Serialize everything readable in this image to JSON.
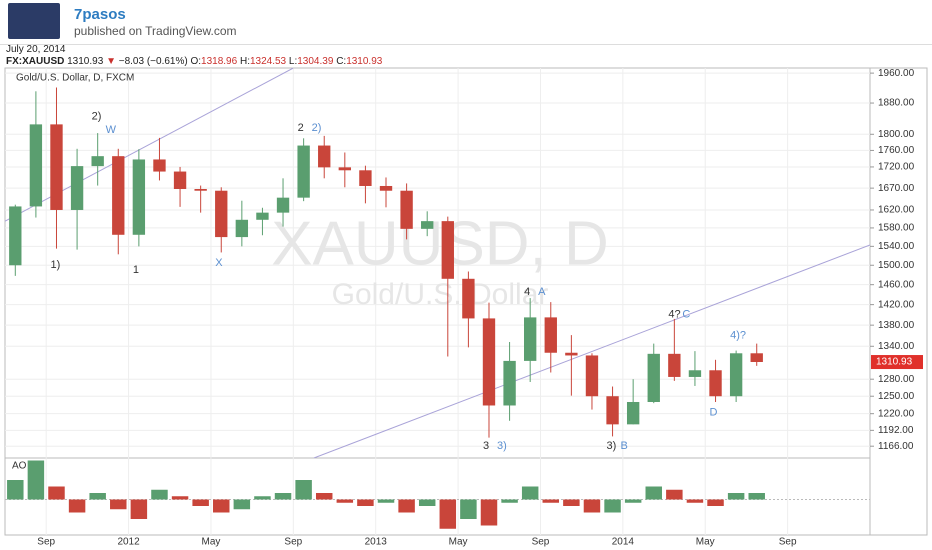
{
  "header": {
    "author": "7pasos",
    "published": "published on TradingView.com",
    "date": "July 20, 2014"
  },
  "quote": {
    "symbol": "FX:XAUUSD",
    "last": "1310.93",
    "arrow": "▼",
    "change": "−8.03 (−0.61%)",
    "fields": [
      {
        "label": "O:",
        "value": "1318.96"
      },
      {
        "label": "H:",
        "value": "1324.53"
      },
      {
        "label": "L:",
        "value": "1304.39"
      },
      {
        "label": "C:",
        "value": "1310.93"
      }
    ]
  },
  "chart_data": {
    "type": "candlestick",
    "title": "Gold/U.S. Dollar, D, FXCM",
    "watermark": "XAUUSD, D",
    "watermark_sub": "Gold/U.S. Dollar",
    "log_scale": true,
    "grid": true,
    "up_color": "#5a9e6f",
    "down_color": "#c9453a",
    "line_color": "#a9a3d8",
    "last_price": {
      "value": 1310.93,
      "label": "1310.93",
      "color": "#e0302a"
    },
    "x": [
      "2011-07",
      "2011-08",
      "2011-09",
      "2011-10",
      "2011-11",
      "2011-12",
      "2012-01",
      "2012-02",
      "2012-03",
      "2012-04",
      "2012-05",
      "2012-06",
      "2012-07",
      "2012-08",
      "2012-09",
      "2012-10",
      "2012-11",
      "2012-12",
      "2013-01",
      "2013-02",
      "2013-03",
      "2013-04",
      "2013-05",
      "2013-06",
      "2013-07",
      "2013-08",
      "2013-09",
      "2013-10",
      "2013-11",
      "2013-12",
      "2014-01",
      "2014-02",
      "2014-03",
      "2014-04",
      "2014-05",
      "2014-06",
      "2014-07"
    ],
    "open": [
      1500,
      1628,
      1825,
      1620,
      1722,
      1746,
      1565,
      1738,
      1709,
      1668,
      1664,
      1560,
      1598,
      1614,
      1648,
      1772,
      1719,
      1712,
      1675,
      1664,
      1578,
      1595,
      1472,
      1393,
      1234,
      1313,
      1395,
      1328,
      1323,
      1250,
      1202,
      1240,
      1326,
      1284,
      1296,
      1250,
      1327
    ],
    "high": [
      1632,
      1911,
      1921,
      1764,
      1803,
      1764,
      1763,
      1791,
      1720,
      1676,
      1672,
      1641,
      1625,
      1693,
      1790,
      1796,
      1755,
      1723,
      1695,
      1681,
      1617,
      1605,
      1487,
      1424,
      1348,
      1433,
      1425,
      1361,
      1327,
      1267,
      1280,
      1345,
      1392,
      1331,
      1315,
      1332,
      1345
    ],
    "low": [
      1478,
      1603,
      1535,
      1533,
      1676,
      1523,
      1540,
      1688,
      1627,
      1614,
      1527,
      1540,
      1564,
      1583,
      1640,
      1693,
      1672,
      1635,
      1626,
      1555,
      1562,
      1321,
      1338,
      1180,
      1208,
      1275,
      1292,
      1251,
      1227,
      1182,
      1202,
      1238,
      1277,
      1268,
      1240,
      1240,
      1304
    ],
    "close": [
      1628,
      1825,
      1620,
      1722,
      1746,
      1565,
      1738,
      1709,
      1668,
      1664,
      1560,
      1598,
      1614,
      1648,
      1772,
      1719,
      1712,
      1675,
      1664,
      1578,
      1595,
      1472,
      1393,
      1234,
      1313,
      1395,
      1328,
      1323,
      1250,
      1202,
      1240,
      1326,
      1284,
      1296,
      1250,
      1327,
      1311
    ],
    "xlim": [
      "2011-07",
      "2015-01"
    ],
    "xticks": [
      {
        "value": "2011-09",
        "label": "Sep"
      },
      {
        "value": "2012-01",
        "label": "2012"
      },
      {
        "value": "2012-05",
        "label": "May"
      },
      {
        "value": "2012-09",
        "label": "Sep"
      },
      {
        "value": "2013-01",
        "label": "2013"
      },
      {
        "value": "2013-05",
        "label": "May"
      },
      {
        "value": "2013-09",
        "label": "Sep"
      },
      {
        "value": "2014-01",
        "label": "2014"
      },
      {
        "value": "2014-05",
        "label": "May"
      },
      {
        "value": "2014-09",
        "label": "Sep"
      }
    ],
    "ylim": [
      1147,
      1974
    ],
    "yticks": [
      {
        "value": 1960,
        "label": "1960.00"
      },
      {
        "value": 1880,
        "label": "1880.00"
      },
      {
        "value": 1800,
        "label": "1800.00"
      },
      {
        "value": 1760,
        "label": "1760.00"
      },
      {
        "value": 1720,
        "label": "1720.00"
      },
      {
        "value": 1670,
        "label": "1670.00"
      },
      {
        "value": 1620,
        "label": "1620.00"
      },
      {
        "value": 1580,
        "label": "1580.00"
      },
      {
        "value": 1540,
        "label": "1540.00"
      },
      {
        "value": 1500,
        "label": "1500.00"
      },
      {
        "value": 1460,
        "label": "1460.00"
      },
      {
        "value": 1420,
        "label": "1420.00"
      },
      {
        "value": 1380,
        "label": "1380.00"
      },
      {
        "value": 1340,
        "label": "1340.00"
      },
      {
        "value": 1280,
        "label": "1280.00"
      },
      {
        "value": 1250,
        "label": "1250.00"
      },
      {
        "value": 1220,
        "label": "1220.00"
      },
      {
        "value": 1192,
        "label": "1192.00"
      },
      {
        "value": 1166,
        "label": "1166.00"
      }
    ],
    "trendlines": [
      {
        "x": [
          "2011-07",
          "2012-09"
        ],
        "y": [
          1595,
          1974
        ]
      },
      {
        "x": [
          "2012-10",
          "2015-01"
        ],
        "y": [
          1147,
          1543
        ]
      }
    ],
    "annotations": [
      {
        "text": "1)",
        "x": "2011-09",
        "y": 1500,
        "color": "#333333"
      },
      {
        "text": "2)",
        "x": "2011-11",
        "y": 1845,
        "color": "#333333"
      },
      {
        "text": "W",
        "x": "2011-11",
        "y": 1810,
        "color": "#5b8fd0"
      },
      {
        "text": "1",
        "x": "2012-01",
        "y": 1490,
        "color": "#333333"
      },
      {
        "text": "X",
        "x": "2012-05",
        "y": 1505,
        "color": "#5b8fd0"
      },
      {
        "text": "2",
        "x": "2012-09",
        "y": 1815,
        "color": "#333333"
      },
      {
        "text": "2)",
        "x": "2012-09",
        "y": 1815,
        "color": "#5b8fd0"
      },
      {
        "text": "4",
        "x": "2013-08",
        "y": 1445,
        "color": "#333333"
      },
      {
        "text": "A",
        "x": "2013-08",
        "y": 1445,
        "color": "#5b8fd0"
      },
      {
        "text": "3",
        "x": "2013-06",
        "y": 1166,
        "color": "#333333"
      },
      {
        "text": "3)",
        "x": "2013-06",
        "y": 1166,
        "color": "#5b8fd0"
      },
      {
        "text": "3)",
        "x": "2013-12",
        "y": 1166,
        "color": "#333333"
      },
      {
        "text": "B",
        "x": "2013-12",
        "y": 1166,
        "color": "#5b8fd0"
      },
      {
        "text": "4?",
        "x": "2014-03",
        "y": 1400,
        "color": "#333333"
      },
      {
        "text": "C",
        "x": "2014-03",
        "y": 1400,
        "color": "#5b8fd0"
      },
      {
        "text": "4)?",
        "x": "2014-06",
        "y": 1360,
        "color": "#5b8fd0"
      },
      {
        "text": "D",
        "x": "2014-05",
        "y": 1222,
        "color": "#5b8fd0"
      }
    ],
    "indicator": {
      "name": "AO",
      "ylim": [
        -100,
        100
      ],
      "values": [
        60,
        120,
        40,
        -40,
        20,
        -30,
        -60,
        30,
        10,
        -20,
        -40,
        -30,
        10,
        20,
        60,
        20,
        -10,
        -20,
        -10,
        -40,
        -20,
        -90,
        -60,
        -80,
        -10,
        40,
        -10,
        -20,
        -40,
        -40,
        -10,
        40,
        30,
        -10,
        -20,
        20,
        20
      ]
    }
  }
}
